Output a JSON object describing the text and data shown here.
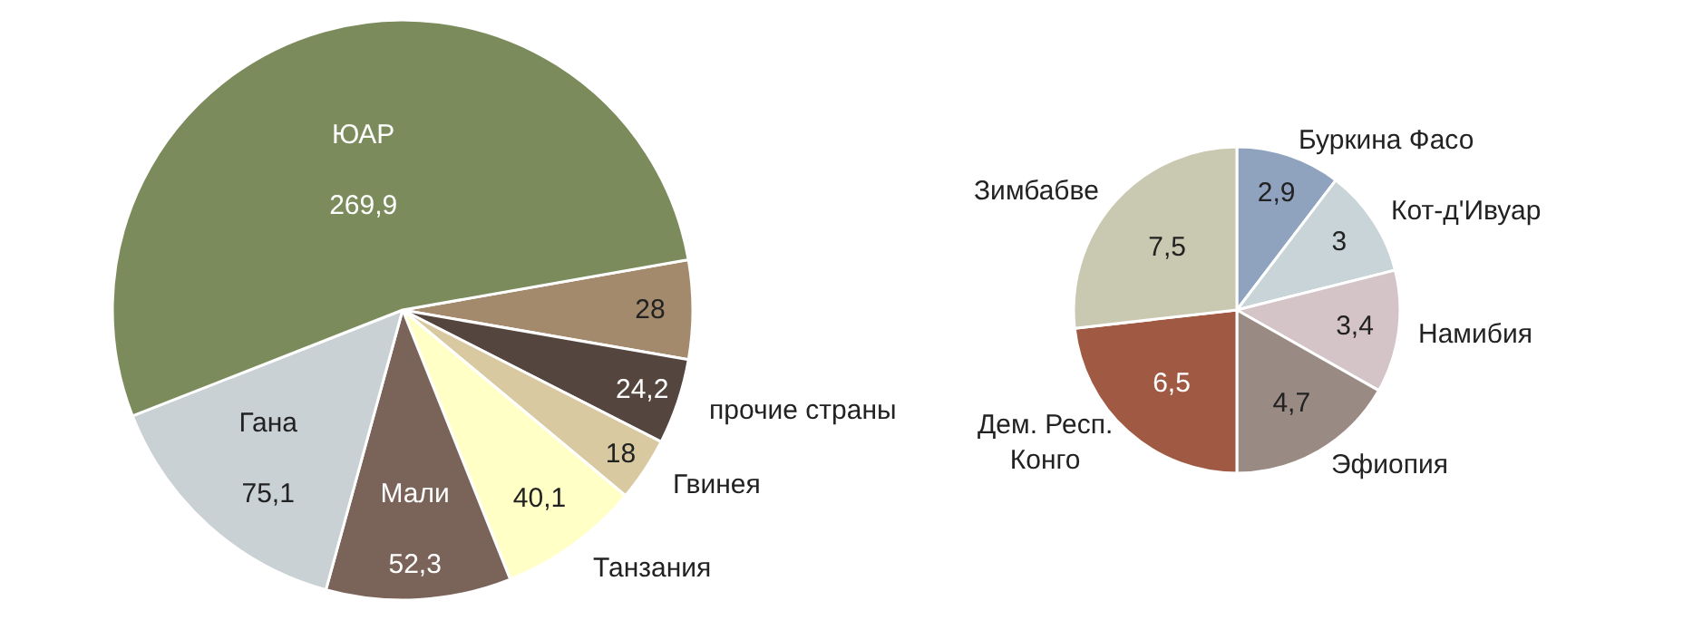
{
  "chart_data": [
    {
      "type": "pie",
      "categories": [
        null,
        "прочие страны",
        "Гвинея",
        "Танзания",
        "Мали",
        "Гана",
        "ЮАР"
      ],
      "values": [
        28,
        24.2,
        18,
        40.1,
        52.3,
        75.1,
        269.9
      ],
      "value_labels": [
        "28",
        "24,2",
        "18",
        "40,1",
        "52,3",
        "75,1",
        "269,9"
      ],
      "colors": [
        "#a48a6c",
        "#54463f",
        "#d9c9a0",
        "#ffffc6",
        "#7a6358",
        "#c9d1d4",
        "#7b8b5b"
      ]
    },
    {
      "type": "pie",
      "categories": [
        "Буркина Фасо",
        "Кот-д'Ивуар",
        "Намибия",
        "Эфиопия",
        "Дем. Респ. Конго",
        "Зимбабве"
      ],
      "values": [
        2.9,
        3,
        3.4,
        4.7,
        6.5,
        7.5
      ],
      "value_labels": [
        "2,9",
        "3",
        "3,4",
        "4,7",
        "6,5",
        "7,5"
      ],
      "colors": [
        "#8fa3bf",
        "#c8d4d8",
        "#d4c4c8",
        "#9a8a84",
        "#a05a44",
        "#c9c8b0"
      ]
    }
  ]
}
